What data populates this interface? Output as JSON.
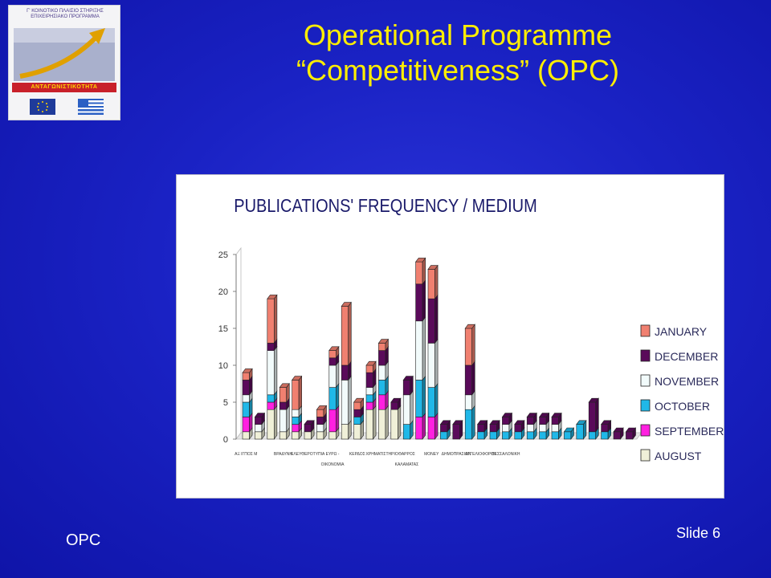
{
  "slide": {
    "title_line1": "Operational Programme",
    "title_line2": "“Competitiveness” (OPC)",
    "footer_left": "OPC",
    "footer_right": "Slide 6"
  },
  "logo": {
    "header_text": "Γ' ΚΟΙΝΟΤΙΚΟ ΠΛΑΙΣΙΟ ΣΤΗΡΙΞΗΣ ΕΠΙΧΕΙΡΗΣΙΑΚΟ ΠΡΟΓΡΑΜΜΑ",
    "banner_text": "ΑΝΤΑΓΩΝΙΣΤΙΚΟΤΗΤΑ"
  },
  "colors": {
    "AUGUST": "#f0f0d8",
    "SEPTEMBER": "#ff20e0",
    "OCTOBER": "#20b8e8",
    "NOVEMBER": "#f2fbfb",
    "DECEMBER": "#5a0a5a",
    "JANUARY": "#f08070"
  },
  "chart_data": {
    "type": "bar",
    "stacked": true,
    "three_d": true,
    "title": "PUBLICATIONS' FREQUENCY / MEDIUM",
    "ylim": [
      0,
      25
    ],
    "yticks": [
      "0",
      "5",
      "10",
      "15",
      "20",
      "25"
    ],
    "legend_placement": "right",
    "legend": [
      "JANUARY",
      "DECEMBER",
      "NOVEMBER",
      "OCTOBER",
      "SEPTEMBER",
      "AUGUST"
    ],
    "tick_labels": [
      {
        "lines": [
          "ΑΞ ΙΓΠΟΣ Μ"
        ],
        "at": 0
      },
      {
        "lines": [
          "ΒΡΑΔΥΝΗ"
        ],
        "at": 3
      },
      {
        "lines": [
          "ΕΛΕΥΘΕΡΟΤΥΠΙΑ"
        ],
        "at": 5
      },
      {
        "lines": [
          "ΕΥΡΩ -",
          "ΟΙΚΟΝΟΜΙΑ"
        ],
        "at": 7
      },
      {
        "lines": [
          "ΚΕΡΔΟΣ"
        ],
        "at": 9
      },
      {
        "lines": [
          "ΧΡΗΜΑΤΙΣΤΗΡΙΟ"
        ],
        "at": 11
      },
      {
        "lines": [
          "ΘΑΡΡΟΣ",
          "ΚΑΛΑΜΑΤΑΣ"
        ],
        "at": 13
      },
      {
        "lines": [
          "MONEY"
        ],
        "at": 15
      },
      {
        "lines": [
          "ΔΗΜΟΠΡΑΣΙΩΝ"
        ],
        "at": 17
      },
      {
        "lines": [
          "ΑΓΓΕΛΙΟΦΟΡΟΣ"
        ],
        "at": 19
      },
      {
        "lines": [
          "ΘΕΣΣΑΛΟΝΙΚΗ"
        ],
        "at": 21
      }
    ],
    "series": [
      {
        "name": "AUGUST",
        "values": [
          1,
          1,
          4,
          1,
          1,
          1,
          1,
          1,
          2,
          2,
          4,
          4,
          4,
          0,
          0,
          0,
          0,
          0,
          0,
          0,
          0,
          0,
          0,
          0,
          0,
          0,
          0,
          0,
          0,
          0,
          0,
          0
        ]
      },
      {
        "name": "SEPTEMBER",
        "values": [
          2,
          0,
          1,
          0,
          1,
          0,
          0,
          3,
          0,
          0,
          1,
          2,
          0,
          0,
          3,
          3,
          0,
          0,
          0,
          0,
          0,
          0,
          0,
          0,
          0,
          0,
          0,
          0,
          0,
          0,
          0,
          0
        ]
      },
      {
        "name": "OCTOBER",
        "values": [
          2,
          0,
          1,
          0,
          1,
          0,
          0,
          3,
          0,
          1,
          1,
          2,
          0,
          2,
          5,
          4,
          1,
          0,
          4,
          1,
          1,
          1,
          1,
          1,
          1,
          1,
          1,
          2,
          1,
          1,
          0,
          0
        ]
      },
      {
        "name": "NOVEMBER",
        "values": [
          1,
          1,
          6,
          3,
          1,
          0,
          1,
          3,
          6,
          0,
          1,
          2,
          0,
          4,
          8,
          6,
          0,
          0,
          2,
          0,
          0,
          1,
          0,
          1,
          1,
          1,
          0,
          0,
          0,
          0,
          0,
          0
        ]
      },
      {
        "name": "DECEMBER",
        "values": [
          2,
          1,
          1,
          1,
          0,
          1,
          1,
          1,
          2,
          1,
          2,
          2,
          1,
          2,
          5,
          6,
          1,
          2,
          4,
          1,
          1,
          1,
          1,
          1,
          1,
          1,
          0,
          0,
          4,
          1,
          1,
          1
        ]
      },
      {
        "name": "JANUARY",
        "values": [
          1,
          0,
          6,
          2,
          4,
          0,
          1,
          1,
          8,
          1,
          1,
          1,
          0,
          0,
          3,
          4,
          0,
          0,
          5,
          0,
          0,
          0,
          0,
          0,
          0,
          0,
          0,
          0,
          0,
          0,
          0,
          0
        ]
      }
    ]
  }
}
